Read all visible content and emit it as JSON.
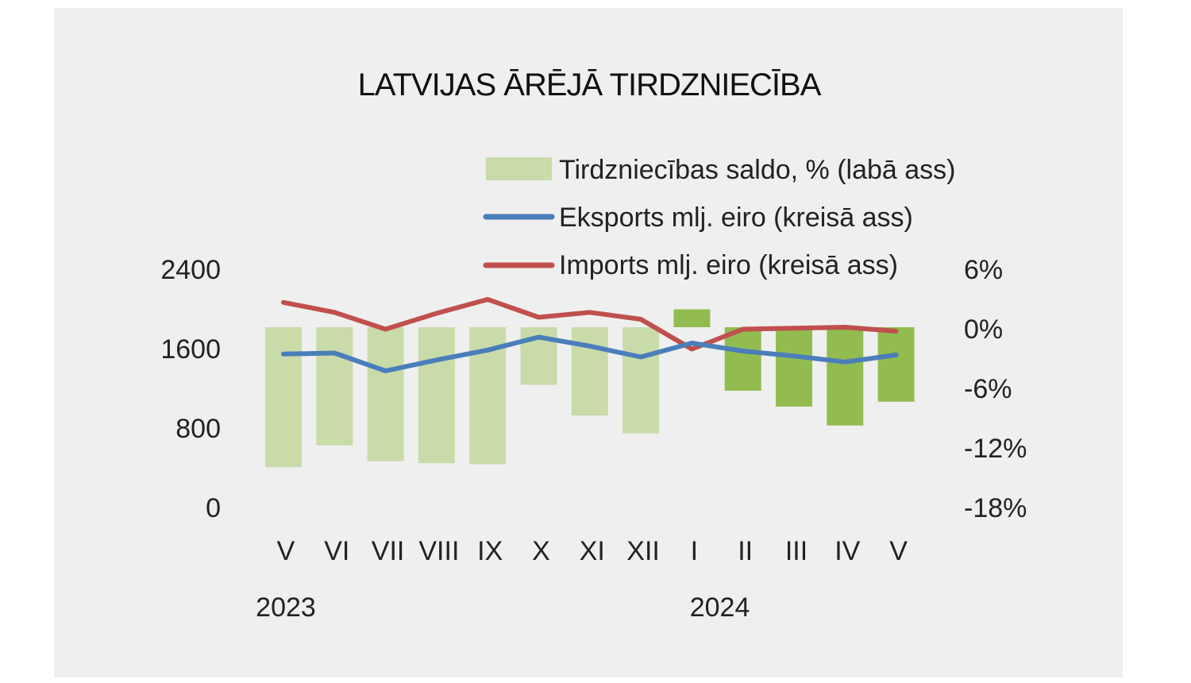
{
  "chart_data": {
    "type": "bar",
    "title": "LATVIJAS ĀRĒJĀ TIRDZNIECĪBA",
    "categories": [
      "V",
      "VI",
      "VII",
      "VIII",
      "IX",
      "X",
      "XI",
      "XII",
      "I",
      "II",
      "III",
      "IV",
      "V"
    ],
    "years": [
      {
        "label": "2023",
        "at_category_index": 0
      },
      {
        "label": "2024",
        "at_category_index": 8.5
      }
    ],
    "left_axis": {
      "ticks": [
        "0",
        "800",
        "1600",
        "2400"
      ],
      "ylim": [
        0,
        2400
      ]
    },
    "right_axis": {
      "ticks": [
        "-18%",
        "-12%",
        "-6%",
        "0%",
        "6%"
      ],
      "ylim": [
        -18,
        6
      ]
    },
    "series": [
      {
        "name": "Tirdzniecības saldo, % (labā ass)",
        "type": "bar",
        "axis": "right",
        "values": [
          -14.1,
          -11.9,
          -13.5,
          -13.7,
          -13.8,
          -5.8,
          -8.9,
          -10.7,
          1.8,
          -6.4,
          -8.0,
          -9.9,
          -7.5
        ],
        "colors": [
          "#c9dba9",
          "#c9dba9",
          "#c9dba9",
          "#c9dba9",
          "#c9dba9",
          "#c9dba9",
          "#c9dba9",
          "#c9dba9",
          "#92bc50",
          "#92bc50",
          "#92bc50",
          "#92bc50",
          "#92bc50"
        ]
      },
      {
        "name": "Eksports mlj. eiro (kreisā ass)",
        "type": "line",
        "axis": "left",
        "color": "#4a7ebb",
        "values": [
          1530,
          1540,
          1360,
          1470,
          1570,
          1700,
          1610,
          1500,
          1640,
          1560,
          1510,
          1450,
          1520
        ]
      },
      {
        "name": "Imports mlj. eiro (kreisā ass)",
        "type": "line",
        "axis": "left",
        "color": "#c0504d",
        "values": [
          2050,
          1950,
          1780,
          1940,
          2080,
          1900,
          1950,
          1880,
          1580,
          1780,
          1790,
          1800,
          1760
        ]
      }
    ],
    "legend": "top-center",
    "grid": false
  }
}
